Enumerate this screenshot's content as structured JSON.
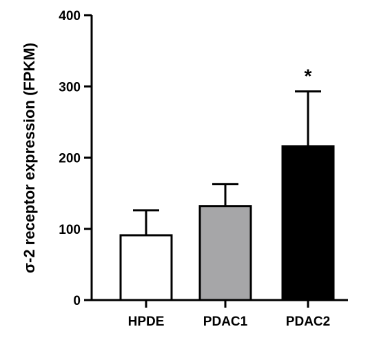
{
  "chart_data": {
    "type": "bar",
    "title": "",
    "xlabel": "",
    "ylabel": "σ-2 receptor expression (FPKM)",
    "ylim": [
      0,
      400
    ],
    "yticks": [
      0,
      100,
      200,
      300,
      400
    ],
    "grid": false,
    "categories": [
      "HPDE",
      "PDAC1",
      "PDAC2"
    ],
    "values": [
      91,
      132,
      216
    ],
    "error_upper": [
      35,
      31,
      77
    ],
    "colors": [
      "#ffffff",
      "#a6a6a8",
      "#000000"
    ],
    "annotations": [
      {
        "category": "PDAC2",
        "text": "*"
      }
    ]
  }
}
